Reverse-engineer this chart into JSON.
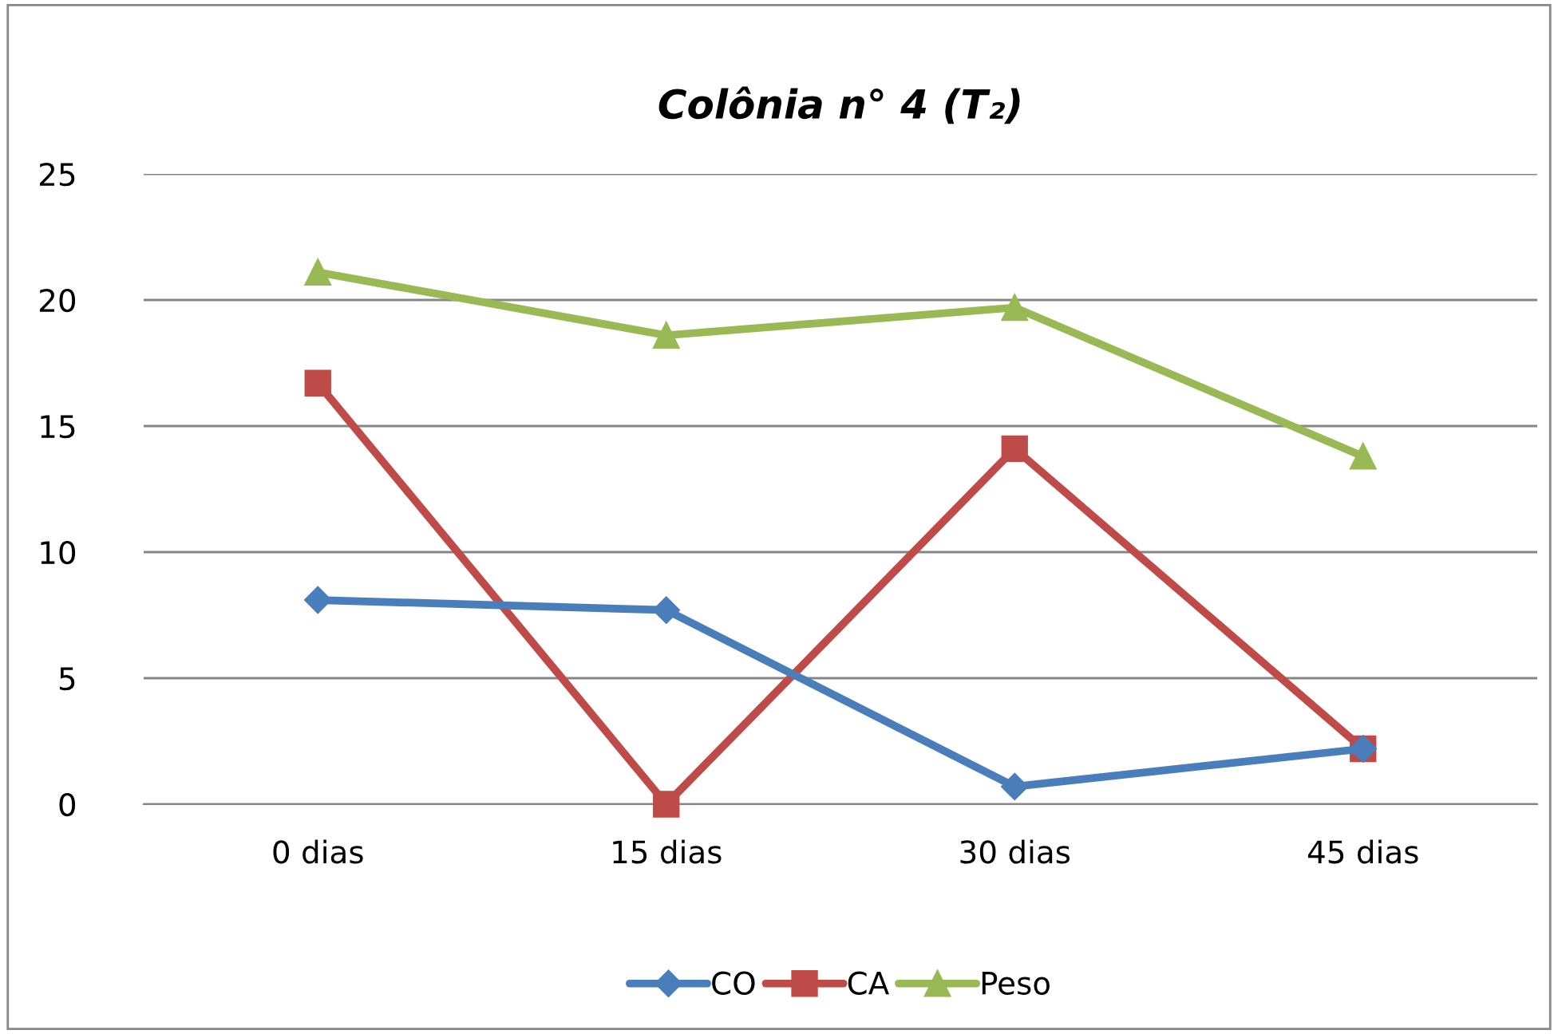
{
  "chart_data": {
    "type": "line",
    "title": "Colônia n° 4 (T₂)",
    "categories": [
      "0 dias",
      "15 dias",
      "30 dias",
      "45 dias"
    ],
    "series": [
      {
        "name": "CO",
        "color": "#4a7ebb",
        "marker": "diamond",
        "values": [
          8.1,
          7.7,
          0.7,
          2.2
        ]
      },
      {
        "name": "CA",
        "color": "#be4b48",
        "marker": "square",
        "values": [
          16.7,
          0,
          14.1,
          2.2
        ]
      },
      {
        "name": "Peso",
        "color": "#98b954",
        "marker": "triangle",
        "values": [
          21.1,
          18.6,
          19.7,
          13.8
        ]
      }
    ],
    "ylim": [
      0,
      25
    ],
    "yticks": [
      0,
      5,
      10,
      15,
      20,
      25
    ],
    "grid": "y",
    "legend": "bottom",
    "line_style": "solid"
  }
}
